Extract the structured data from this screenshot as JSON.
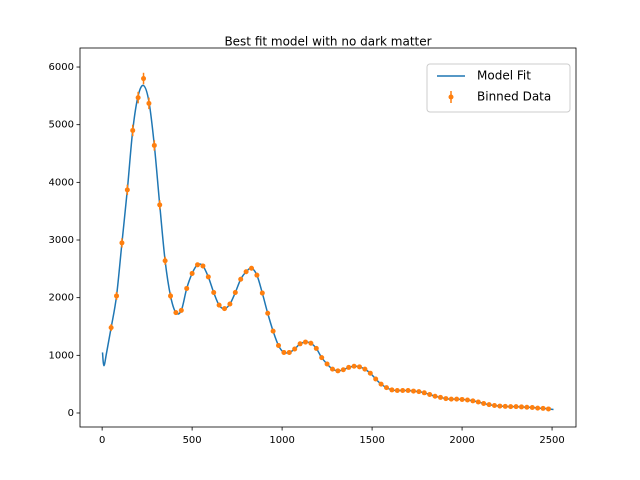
{
  "chart_data": {
    "type": "line",
    "title": "Best fit model with no dark matter",
    "xlim": [
      -123,
      2633
    ],
    "ylim": [
      -243,
      6330
    ],
    "xticks": [
      0,
      500,
      1000,
      1500,
      2000,
      2500
    ],
    "yticks": [
      0,
      1000,
      2000,
      3000,
      4000,
      5000,
      6000
    ],
    "legend": "upper right",
    "series": [
      {
        "name": "Model Fit",
        "color": "#1f77b4",
        "type": "line",
        "x": [
          2,
          10,
          25,
          50,
          80,
          110,
          140,
          170,
          200,
          230,
          260,
          290,
          320,
          350,
          380,
          410,
          440,
          470,
          500,
          530,
          560,
          590,
          620,
          650,
          680,
          710,
          740,
          770,
          800,
          830,
          860,
          890,
          920,
          950,
          980,
          1010,
          1040,
          1070,
          1100,
          1130,
          1160,
          1190,
          1220,
          1250,
          1280,
          1310,
          1340,
          1370,
          1400,
          1430,
          1460,
          1490,
          1520,
          1550,
          1580,
          1610,
          1640,
          1670,
          1700,
          1730,
          1760,
          1790,
          1820,
          1850,
          1880,
          1910,
          1940,
          1970,
          2000,
          2030,
          2060,
          2090,
          2120,
          2150,
          2180,
          2210,
          2240,
          2270,
          2300,
          2330,
          2360,
          2390,
          2420,
          2450,
          2480,
          2508
        ],
        "values": [
          1050,
          820,
          1050,
          1480,
          2030,
          2950,
          3870,
          4900,
          5500,
          5680,
          5400,
          4640,
          3610,
          2640,
          2030,
          1740,
          1780,
          2160,
          2420,
          2570,
          2550,
          2360,
          2090,
          1870,
          1810,
          1890,
          2090,
          2320,
          2450,
          2510,
          2390,
          2080,
          1730,
          1420,
          1170,
          1050,
          1050,
          1110,
          1200,
          1230,
          1210,
          1120,
          960,
          850,
          760,
          730,
          750,
          790,
          810,
          800,
          760,
          690,
          590,
          500,
          440,
          400,
          390,
          390,
          390,
          380,
          370,
          350,
          320,
          290,
          270,
          250,
          240,
          240,
          235,
          225,
          210,
          190,
          165,
          145,
          130,
          120,
          115,
          110,
          110,
          105,
          100,
          95,
          85,
          80,
          70,
          60
        ]
      },
      {
        "name": "Binned Data",
        "color": "#ff7f0e",
        "type": "errorbar",
        "x": [
          50,
          80,
          110,
          140,
          170,
          200,
          230,
          260,
          290,
          320,
          350,
          380,
          410,
          440,
          470,
          500,
          530,
          560,
          590,
          620,
          650,
          680,
          710,
          740,
          770,
          800,
          830,
          860,
          890,
          920,
          950,
          980,
          1010,
          1040,
          1070,
          1100,
          1130,
          1160,
          1190,
          1220,
          1250,
          1280,
          1310,
          1340,
          1370,
          1400,
          1430,
          1460,
          1490,
          1520,
          1550,
          1580,
          1610,
          1640,
          1670,
          1700,
          1730,
          1760,
          1790,
          1820,
          1850,
          1880,
          1910,
          1940,
          1970,
          2000,
          2030,
          2060,
          2090,
          2120,
          2150,
          2180,
          2210,
          2240,
          2270,
          2300,
          2330,
          2360,
          2390,
          2420,
          2450,
          2480
        ],
        "values": [
          1480,
          2030,
          2950,
          3870,
          4900,
          5470,
          5800,
          5370,
          4640,
          3610,
          2640,
          2030,
          1740,
          1780,
          2160,
          2420,
          2570,
          2550,
          2360,
          2090,
          1870,
          1810,
          1890,
          2090,
          2320,
          2450,
          2510,
          2390,
          2080,
          1730,
          1420,
          1170,
          1050,
          1050,
          1110,
          1200,
          1230,
          1210,
          1120,
          960,
          850,
          760,
          730,
          750,
          790,
          810,
          800,
          760,
          690,
          590,
          500,
          440,
          400,
          390,
          390,
          390,
          380,
          370,
          350,
          320,
          290,
          270,
          250,
          240,
          240,
          235,
          225,
          210,
          190,
          165,
          145,
          130,
          120,
          115,
          110,
          110,
          105,
          100,
          95,
          85,
          80,
          70
        ],
        "errors": [
          60,
          70,
          80,
          90,
          100,
          100,
          100,
          100,
          90,
          80,
          70,
          60,
          40,
          40,
          40,
          40,
          40,
          40,
          40,
          40,
          40,
          40,
          40,
          40,
          40,
          40,
          40,
          40,
          40,
          40,
          40,
          40,
          40,
          40,
          40,
          40,
          40,
          40,
          40,
          40,
          20,
          20,
          20,
          20,
          20,
          20,
          20,
          20,
          20,
          20,
          20,
          20,
          20,
          20,
          20,
          20,
          20,
          20,
          20,
          20,
          20,
          20,
          20,
          20,
          20,
          20,
          20,
          20,
          20,
          20,
          20,
          20,
          20,
          20,
          20,
          20,
          20,
          20,
          20,
          20,
          20,
          20
        ]
      }
    ]
  }
}
